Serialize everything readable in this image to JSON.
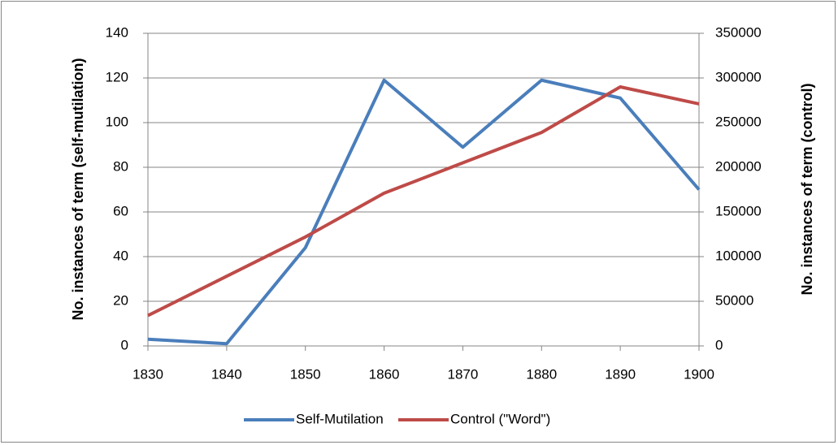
{
  "chart_data": {
    "type": "line",
    "x": [
      1830,
      1840,
      1850,
      1860,
      1870,
      1880,
      1890,
      1900
    ],
    "xlim": [
      1830,
      1900
    ],
    "xticks": [
      1830,
      1840,
      1850,
      1860,
      1870,
      1880,
      1890,
      1900
    ],
    "ylabel": "No. instances of term (self-mutilation)",
    "y2label": "No. instances of term (control)",
    "ylim": [
      0,
      140
    ],
    "yticks": [
      0,
      20,
      40,
      60,
      80,
      100,
      120,
      140
    ],
    "y2lim": [
      0,
      350000
    ],
    "y2ticks": [
      0,
      50000,
      100000,
      150000,
      200000,
      250000,
      300000,
      350000
    ],
    "grid": true,
    "legend": "bottom",
    "series": [
      {
        "name": "Self-Mutilation",
        "color": "#4a7ebb",
        "values": [
          3,
          1,
          44,
          119,
          89,
          119,
          111,
          70
        ]
      },
      {
        "name": "Control (\"Word\")",
        "color": "#be4b48",
        "axis": "y2",
        "values": [
          34000,
          78000,
          122000,
          171000,
          205000,
          239000,
          290000,
          271000
        ]
      }
    ]
  }
}
